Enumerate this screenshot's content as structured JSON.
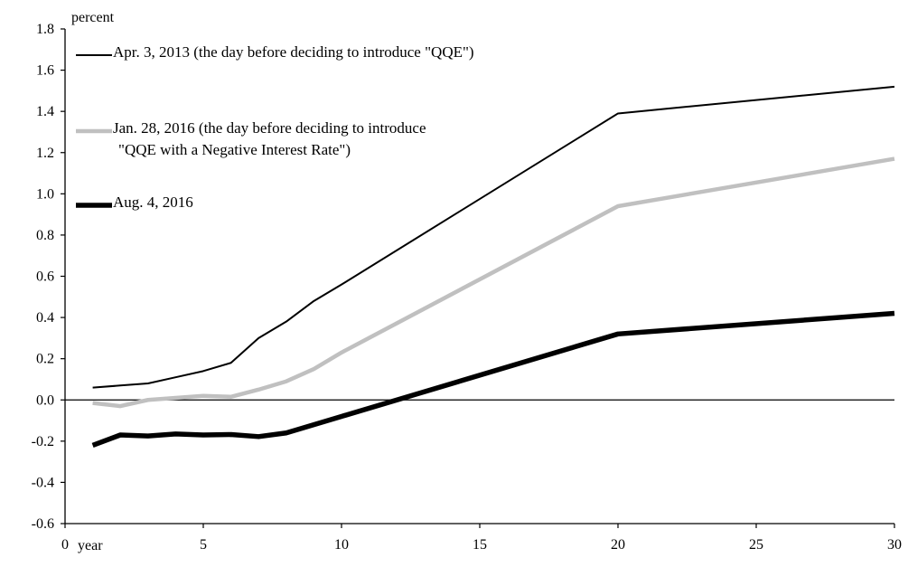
{
  "chart_data": {
    "type": "line",
    "title": "",
    "ylabel": "percent",
    "xlabel": "year",
    "xlim": [
      0,
      30
    ],
    "ylim": [
      -0.6,
      1.8
    ],
    "grid": false,
    "legend_position": "top-left",
    "x_ticks": [
      {
        "value": 0,
        "label": "0"
      },
      {
        "value": 5,
        "label": "5"
      },
      {
        "value": 10,
        "label": "10"
      },
      {
        "value": 15,
        "label": "15"
      },
      {
        "value": 20,
        "label": "20"
      },
      {
        "value": 25,
        "label": "25"
      },
      {
        "value": 30,
        "label": "30"
      }
    ],
    "y_ticks": [
      {
        "value": 1.8,
        "label": "1.8"
      },
      {
        "value": 1.6,
        "label": "1.6"
      },
      {
        "value": 1.4,
        "label": "1.4"
      },
      {
        "value": 1.2,
        "label": "1.2"
      },
      {
        "value": 1.0,
        "label": "1.0"
      },
      {
        "value": 0.8,
        "label": "0.8"
      },
      {
        "value": 0.6,
        "label": "0.6"
      },
      {
        "value": 0.4,
        "label": "0.4"
      },
      {
        "value": 0.2,
        "label": "0.2"
      },
      {
        "value": 0.0,
        "label": "0.0"
      },
      {
        "value": -0.2,
        "label": "-0.2"
      },
      {
        "value": -0.4,
        "label": "-0.4"
      },
      {
        "value": -0.6,
        "label": "-0.6"
      }
    ],
    "series": [
      {
        "name": "Apr. 3, 2013 (the day before deciding to introduce \"QQE\")",
        "color": "#000000",
        "style": "thin",
        "points": [
          [
            1,
            0.06
          ],
          [
            2,
            0.07
          ],
          [
            3,
            0.08
          ],
          [
            4,
            0.11
          ],
          [
            5,
            0.14
          ],
          [
            6,
            0.18
          ],
          [
            7,
            0.3
          ],
          [
            8,
            0.38
          ],
          [
            9,
            0.48
          ],
          [
            10,
            0.56
          ],
          [
            20,
            1.39
          ],
          [
            30,
            1.52
          ]
        ]
      },
      {
        "name": "Jan. 28, 2016 (the day before deciding to introduce \"QQE with a Negative Interest Rate\")",
        "name_lines": [
          "Jan. 28, 2016 (the day before deciding to introduce",
          "\"QQE with a Negative Interest Rate\")"
        ],
        "color": "#c0c0c0",
        "style": "thick",
        "points": [
          [
            1,
            -0.015
          ],
          [
            2,
            -0.03
          ],
          [
            3,
            0.0
          ],
          [
            4,
            0.01
          ],
          [
            5,
            0.02
          ],
          [
            6,
            0.015
          ],
          [
            7,
            0.05
          ],
          [
            8,
            0.09
          ],
          [
            9,
            0.15
          ],
          [
            10,
            0.23
          ],
          [
            20,
            0.94
          ],
          [
            30,
            1.17
          ]
        ]
      },
      {
        "name": "Aug. 4, 2016",
        "color": "#000000",
        "style": "thickest",
        "points": [
          [
            1,
            -0.22
          ],
          [
            2,
            -0.17
          ],
          [
            3,
            -0.175
          ],
          [
            4,
            -0.165
          ],
          [
            5,
            -0.17
          ],
          [
            6,
            -0.168
          ],
          [
            7,
            -0.178
          ],
          [
            8,
            -0.16
          ],
          [
            9,
            -0.12
          ],
          [
            10,
            -0.08
          ],
          [
            20,
            0.32
          ],
          [
            30,
            0.42
          ]
        ]
      }
    ]
  }
}
